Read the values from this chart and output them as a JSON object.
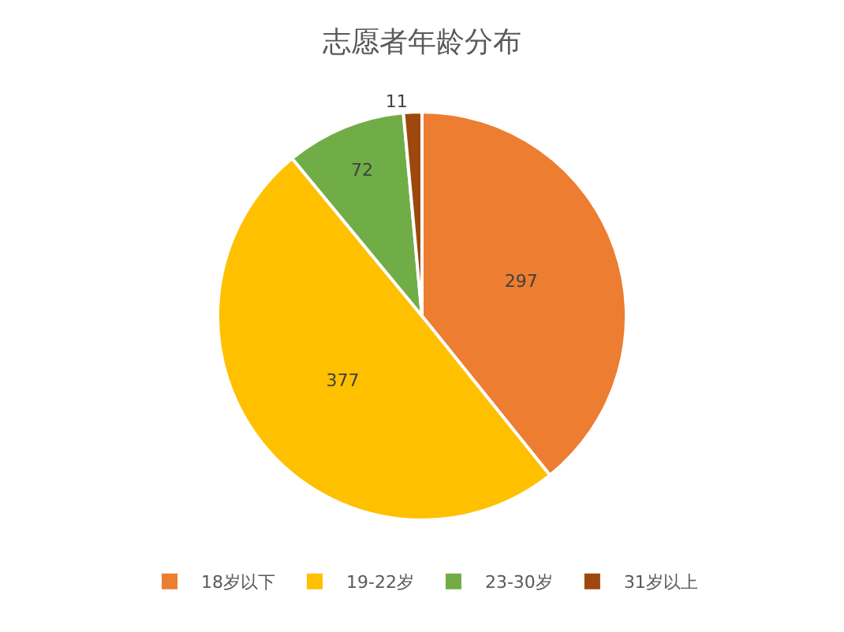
{
  "chart_data": {
    "type": "pie",
    "title": "志愿者年龄分布",
    "categories": [
      "18岁以下",
      "19-22岁",
      "23-30岁",
      "31岁以上"
    ],
    "values": [
      297,
      377,
      72,
      11
    ],
    "colors": [
      "#ed7d31",
      "#ffc000",
      "#70ad47",
      "#9e480e"
    ],
    "data_labels": true,
    "legend": "bottom"
  }
}
